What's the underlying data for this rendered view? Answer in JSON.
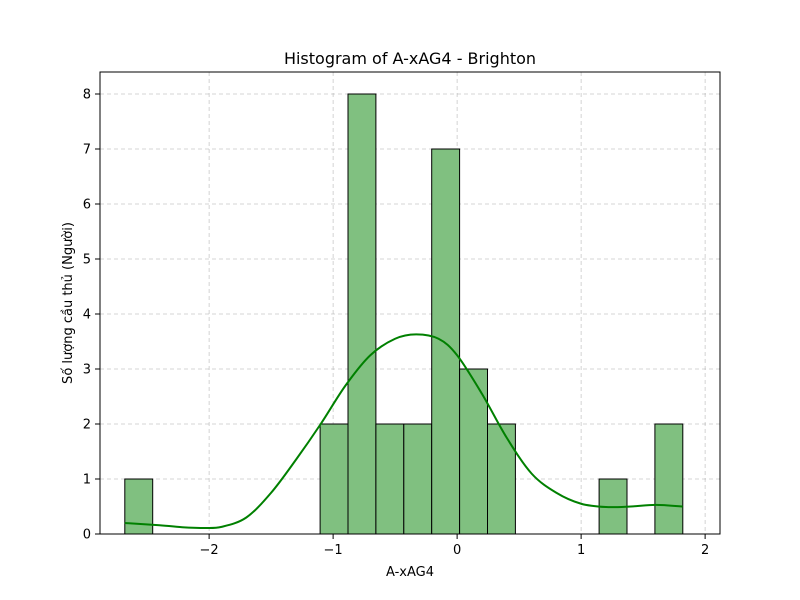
{
  "chart_data": {
    "type": "bar",
    "subtype": "histogram-with-kde",
    "title": "Histogram of A-xAG4 - Brighton",
    "xlabel": "A-xAG4",
    "ylabel": "Số lượng cầu thủ (Người)",
    "xlim": [
      -2.88,
      2.12
    ],
    "ylim": [
      0,
      8.4
    ],
    "xticks": [
      -2,
      -1,
      0,
      1,
      2
    ],
    "xtick_labels": [
      "−2",
      "−1",
      "0",
      "1",
      "2"
    ],
    "yticks": [
      0,
      1,
      2,
      3,
      4,
      5,
      6,
      7,
      8
    ],
    "ytick_labels": [
      "0",
      "1",
      "2",
      "3",
      "4",
      "5",
      "6",
      "7",
      "8"
    ],
    "grid": true,
    "bar_color": "#80c080",
    "bar_edge_color": "#000000",
    "kde_color": "#008000",
    "bins": [
      {
        "x0": -2.68,
        "x1": -2.455,
        "count": 1
      },
      {
        "x0": -2.455,
        "x1": -2.23,
        "count": 0
      },
      {
        "x0": -2.23,
        "x1": -2.005,
        "count": 0
      },
      {
        "x0": -2.005,
        "x1": -1.78,
        "count": 0
      },
      {
        "x0": -1.78,
        "x1": -1.555,
        "count": 0
      },
      {
        "x0": -1.555,
        "x1": -1.33,
        "count": 0
      },
      {
        "x0": -1.33,
        "x1": -1.105,
        "count": 0
      },
      {
        "x0": -1.105,
        "x1": -0.88,
        "count": 2
      },
      {
        "x0": -0.88,
        "x1": -0.655,
        "count": 8
      },
      {
        "x0": -0.655,
        "x1": -0.43,
        "count": 2
      },
      {
        "x0": -0.43,
        "x1": -0.205,
        "count": 2
      },
      {
        "x0": -0.205,
        "x1": 0.02,
        "count": 7
      },
      {
        "x0": 0.02,
        "x1": 0.245,
        "count": 3
      },
      {
        "x0": 0.245,
        "x1": 0.47,
        "count": 2
      },
      {
        "x0": 0.47,
        "x1": 0.695,
        "count": 0
      },
      {
        "x0": 0.695,
        "x1": 0.92,
        "count": 0
      },
      {
        "x0": 0.92,
        "x1": 1.145,
        "count": 0
      },
      {
        "x0": 1.145,
        "x1": 1.37,
        "count": 1
      },
      {
        "x0": 1.37,
        "x1": 1.595,
        "count": 0
      },
      {
        "x0": 1.595,
        "x1": 1.82,
        "count": 2
      }
    ],
    "kde": {
      "x": [
        -2.68,
        -2.4,
        -2.2,
        -2.05,
        -1.9,
        -1.7,
        -1.5,
        -1.3,
        -1.1,
        -0.9,
        -0.7,
        -0.5,
        -0.33,
        -0.15,
        0.0,
        0.2,
        0.4,
        0.6,
        0.8,
        1.0,
        1.2,
        1.4,
        1.6,
        1.82
      ],
      "y": [
        0.2,
        0.16,
        0.12,
        0.11,
        0.13,
        0.3,
        0.75,
        1.35,
        2.0,
        2.7,
        3.25,
        3.55,
        3.63,
        3.55,
        3.25,
        2.55,
        1.75,
        1.1,
        0.75,
        0.55,
        0.49,
        0.5,
        0.53,
        0.5
      ]
    }
  }
}
